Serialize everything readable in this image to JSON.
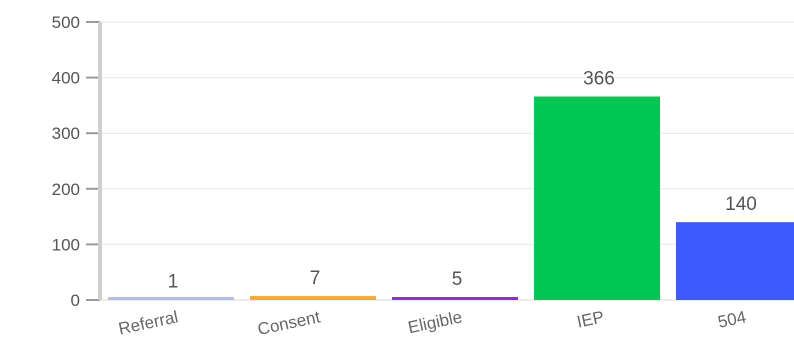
{
  "chart_data": {
    "type": "bar",
    "title": "",
    "xlabel": "",
    "ylabel": "",
    "categories": [
      "Referral",
      "Consent",
      "Eligible",
      "IEP",
      "504"
    ],
    "values": [
      1,
      7,
      5,
      366,
      140
    ],
    "colors": [
      "#b3bde6",
      "#ffa726",
      "#a020f0",
      "#00c853",
      "#3d5afe"
    ],
    "ylim": [
      0,
      500
    ],
    "yticks": [
      0,
      100,
      200,
      300,
      400,
      500
    ],
    "ytick_labels": [
      "0",
      "100",
      "200",
      "300",
      "400",
      "500"
    ],
    "data_labels": [
      "1",
      "7",
      "5",
      "366",
      "140"
    ],
    "grid": true,
    "legend": "none"
  }
}
